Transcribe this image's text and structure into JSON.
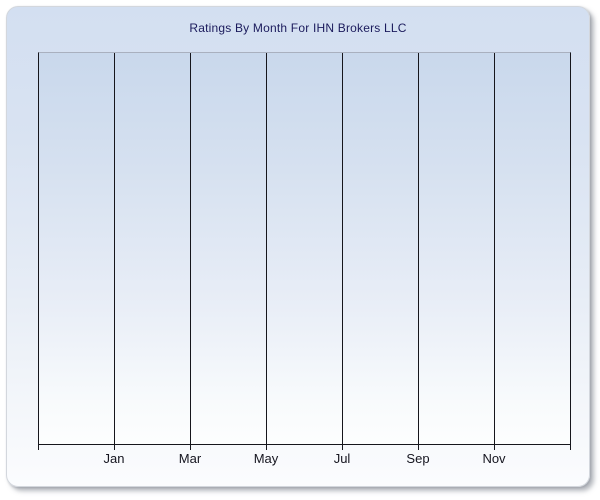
{
  "chart": {
    "title": "Ratings By Month For IHN Brokers LLC"
  },
  "chart_data": {
    "type": "line",
    "title": "Ratings By Month For IHN Brokers LLC",
    "subtitle": "",
    "x_tick_labels": [
      "Jan",
      "Mar",
      "May",
      "Jul",
      "Sep",
      "Nov"
    ],
    "x_axis_note": "months of the year, labeled every other month starting at Jan",
    "ylabel": "",
    "xlabel": "",
    "y_tick_labels": [],
    "series": [],
    "plotted_points": "none - plot area is empty, no data rendered",
    "grid": "vertical gridlines only, one per labeled month plus left/right borders",
    "legend": "none",
    "colors": {
      "title_text": "#1b1b5c",
      "axis_and_gridlines": "#16161c",
      "plot_top_border": "#a9b0bf",
      "panel_background_top": "#d3dff1",
      "panel_background_bottom": "#fbfcfe",
      "plot_background_top": "#c9d8ec",
      "plot_background_bottom": "#fdfefe",
      "tick_label_text": "#15151f",
      "page_background": "#ffffff"
    }
  }
}
